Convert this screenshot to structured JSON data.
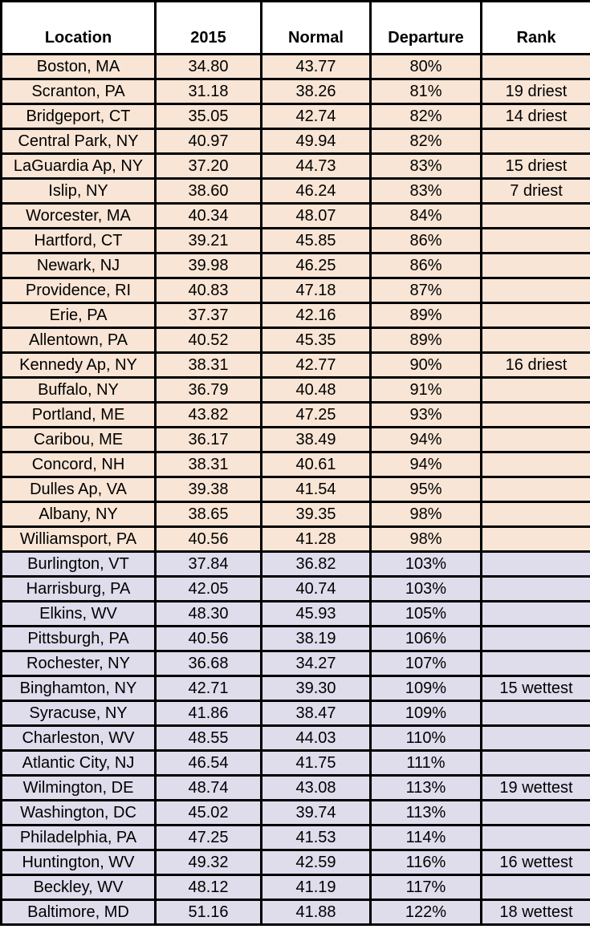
{
  "colors": {
    "header_bg": "#ffffff",
    "drier_row_bg": "#f8e5d5",
    "wetter_row_bg": "#dfdcec",
    "border": "#000000",
    "text": "#000000"
  },
  "chart_data": {
    "type": "table",
    "columns": [
      "Location",
      "2015",
      "Normal",
      "Departure",
      "Rank"
    ],
    "layout": {
      "grid": "black borders around every cell",
      "row_color_coding": "rows with departure below 100% shaded peach (drier than normal), rows at or above 100% shaded lavender (wetter than normal)"
    },
    "rows": [
      {
        "group": "drier",
        "cells": [
          "Boston, MA",
          "34.80",
          "43.77",
          "80%",
          ""
        ]
      },
      {
        "group": "drier",
        "cells": [
          "Scranton, PA",
          "31.18",
          "38.26",
          "81%",
          "19 driest"
        ]
      },
      {
        "group": "drier",
        "cells": [
          "Bridgeport, CT",
          "35.05",
          "42.74",
          "82%",
          "14 driest"
        ]
      },
      {
        "group": "drier",
        "cells": [
          "Central Park, NY",
          "40.97",
          "49.94",
          "82%",
          ""
        ]
      },
      {
        "group": "drier",
        "cells": [
          "LaGuardia Ap, NY",
          "37.20",
          "44.73",
          "83%",
          "15 driest"
        ]
      },
      {
        "group": "drier",
        "cells": [
          "Islip, NY",
          "38.60",
          "46.24",
          "83%",
          "7 driest"
        ]
      },
      {
        "group": "drier",
        "cells": [
          "Worcester, MA",
          "40.34",
          "48.07",
          "84%",
          ""
        ]
      },
      {
        "group": "drier",
        "cells": [
          "Hartford, CT",
          "39.21",
          "45.85",
          "86%",
          ""
        ]
      },
      {
        "group": "drier",
        "cells": [
          "Newark, NJ",
          "39.98",
          "46.25",
          "86%",
          ""
        ]
      },
      {
        "group": "drier",
        "cells": [
          "Providence, RI",
          "40.83",
          "47.18",
          "87%",
          ""
        ]
      },
      {
        "group": "drier",
        "cells": [
          "Erie, PA",
          "37.37",
          "42.16",
          "89%",
          ""
        ]
      },
      {
        "group": "drier",
        "cells": [
          "Allentown, PA",
          "40.52",
          "45.35",
          "89%",
          ""
        ]
      },
      {
        "group": "drier",
        "cells": [
          "Kennedy Ap, NY",
          "38.31",
          "42.77",
          "90%",
          "16 driest"
        ]
      },
      {
        "group": "drier",
        "cells": [
          "Buffalo, NY",
          "36.79",
          "40.48",
          "91%",
          ""
        ]
      },
      {
        "group": "drier",
        "cells": [
          "Portland, ME",
          "43.82",
          "47.25",
          "93%",
          ""
        ]
      },
      {
        "group": "drier",
        "cells": [
          "Caribou, ME",
          "36.17",
          "38.49",
          "94%",
          ""
        ]
      },
      {
        "group": "drier",
        "cells": [
          "Concord, NH",
          "38.31",
          "40.61",
          "94%",
          ""
        ]
      },
      {
        "group": "drier",
        "cells": [
          "Dulles Ap, VA",
          "39.38",
          "41.54",
          "95%",
          ""
        ]
      },
      {
        "group": "drier",
        "cells": [
          "Albany, NY",
          "38.65",
          "39.35",
          "98%",
          ""
        ]
      },
      {
        "group": "drier",
        "cells": [
          "Williamsport, PA",
          "40.56",
          "41.28",
          "98%",
          ""
        ]
      },
      {
        "group": "wetter",
        "cells": [
          "Burlington, VT",
          "37.84",
          "36.82",
          "103%",
          ""
        ]
      },
      {
        "group": "wetter",
        "cells": [
          "Harrisburg, PA",
          "42.05",
          "40.74",
          "103%",
          ""
        ]
      },
      {
        "group": "wetter",
        "cells": [
          "Elkins, WV",
          "48.30",
          "45.93",
          "105%",
          ""
        ]
      },
      {
        "group": "wetter",
        "cells": [
          "Pittsburgh, PA",
          "40.56",
          "38.19",
          "106%",
          ""
        ]
      },
      {
        "group": "wetter",
        "cells": [
          "Rochester, NY",
          "36.68",
          "34.27",
          "107%",
          ""
        ]
      },
      {
        "group": "wetter",
        "cells": [
          "Binghamton, NY",
          "42.71",
          "39.30",
          "109%",
          "15 wettest"
        ]
      },
      {
        "group": "wetter",
        "cells": [
          "Syracuse, NY",
          "41.86",
          "38.47",
          "109%",
          ""
        ]
      },
      {
        "group": "wetter",
        "cells": [
          "Charleston, WV",
          "48.55",
          "44.03",
          "110%",
          ""
        ]
      },
      {
        "group": "wetter",
        "cells": [
          "Atlantic City, NJ",
          "46.54",
          "41.75",
          "111%",
          ""
        ]
      },
      {
        "group": "wetter",
        "cells": [
          "Wilmington, DE",
          "48.74",
          "43.08",
          "113%",
          "19 wettest"
        ]
      },
      {
        "group": "wetter",
        "cells": [
          "Washington, DC",
          "45.02",
          "39.74",
          "113%",
          ""
        ]
      },
      {
        "group": "wetter",
        "cells": [
          "Philadelphia, PA",
          "47.25",
          "41.53",
          "114%",
          ""
        ]
      },
      {
        "group": "wetter",
        "cells": [
          "Huntington, WV",
          "49.32",
          "42.59",
          "116%",
          "16 wettest"
        ]
      },
      {
        "group": "wetter",
        "cells": [
          "Beckley, WV",
          "48.12",
          "41.19",
          "117%",
          ""
        ]
      },
      {
        "group": "wetter",
        "cells": [
          "Baltimore, MD",
          "51.16",
          "41.88",
          "122%",
          "18 wettest"
        ]
      }
    ]
  }
}
